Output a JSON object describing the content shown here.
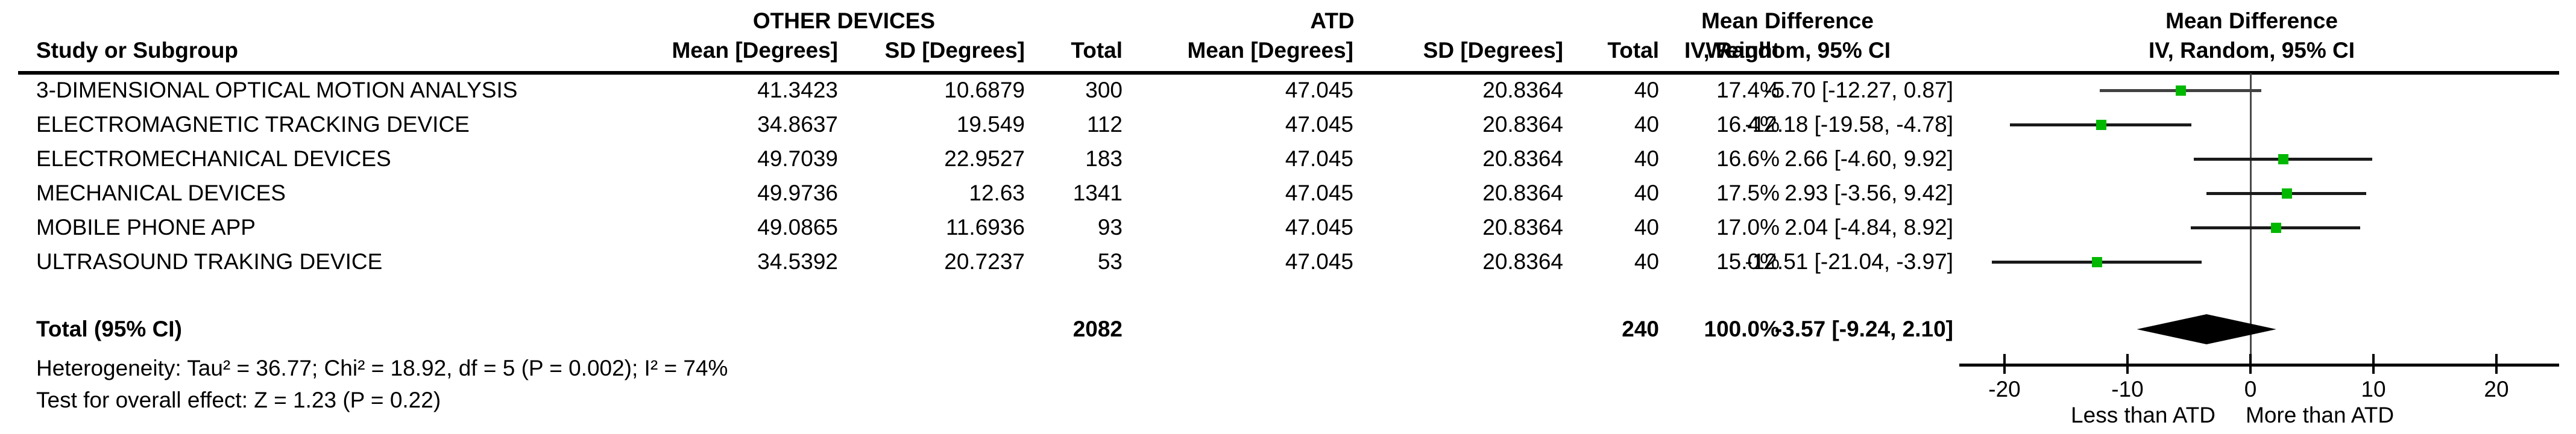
{
  "header": {
    "group_left": "OTHER DEVICES",
    "group_right": "ATD",
    "col_study": "Study or Subgroup",
    "col_mean": "Mean [Degrees]",
    "col_sd": "SD [Degrees]",
    "col_total": "Total",
    "col_weight": "Weight",
    "md_line1": "Mean Difference",
    "md_line2": "IV, Random, 95% CI"
  },
  "rows": [
    {
      "study": "3-DIMENSIONAL OPTICAL MOTION ANALYSIS",
      "mean1": "41.3423",
      "sd1": "10.6879",
      "total1": "300",
      "mean2": "47.045",
      "sd2": "20.8364",
      "total2": "40",
      "weight": "17.4%",
      "ci": "-5.70 [-12.27, 0.87]",
      "est": -5.7,
      "lo": -12.27,
      "hi": 0.87,
      "line_color": "#424242"
    },
    {
      "study": "ELECTROMAGNETIC TRACKING DEVICE",
      "mean1": "34.8637",
      "sd1": "19.549",
      "total1": "112",
      "mean2": "47.045",
      "sd2": "20.8364",
      "total2": "40",
      "weight": "16.4%",
      "ci": "-12.18 [-19.58, -4.78]",
      "est": -12.18,
      "lo": -19.58,
      "hi": -4.78,
      "line_color": "#1a1a1a"
    },
    {
      "study": "ELECTROMECHANICAL DEVICES",
      "mean1": "49.7039",
      "sd1": "22.9527",
      "total1": "183",
      "mean2": "47.045",
      "sd2": "20.8364",
      "total2": "40",
      "weight": "16.6%",
      "ci": "2.66 [-4.60, 9.92]",
      "est": 2.66,
      "lo": -4.6,
      "hi": 9.92,
      "line_color": "#1a1a1a"
    },
    {
      "study": "MECHANICAL DEVICES",
      "mean1": "49.9736",
      "sd1": "12.63",
      "total1": "1341",
      "mean2": "47.045",
      "sd2": "20.8364",
      "total2": "40",
      "weight": "17.5%",
      "ci": "2.93 [-3.56, 9.42]",
      "est": 2.93,
      "lo": -3.56,
      "hi": 9.42,
      "line_color": "#1a1a1a"
    },
    {
      "study": "MOBILE PHONE APP",
      "mean1": "49.0865",
      "sd1": "11.6936",
      "total1": "93",
      "mean2": "47.045",
      "sd2": "20.8364",
      "total2": "40",
      "weight": "17.0%",
      "ci": "2.04 [-4.84, 8.92]",
      "est": 2.04,
      "lo": -4.84,
      "hi": 8.92,
      "line_color": "#1a1a1a"
    },
    {
      "study": "ULTRASOUND TRAKING DEVICE",
      "mean1": "34.5392",
      "sd1": "20.7237",
      "total1": "53",
      "mean2": "47.045",
      "sd2": "20.8364",
      "total2": "40",
      "weight": "15.0%",
      "ci": "-12.51 [-21.04, -3.97]",
      "est": -12.51,
      "lo": -21.04,
      "hi": -3.97,
      "line_color": "#1a1a1a"
    }
  ],
  "total": {
    "label": "Total (95% CI)",
    "total1": "2082",
    "total2": "240",
    "weight": "100.0%",
    "ci": "-3.57 [-9.24, 2.10]",
    "est": -3.57,
    "lo": -9.24,
    "hi": 2.1
  },
  "footnotes": {
    "heterogeneity": "Heterogeneity: Tau² = 36.77; Chi² = 18.92, df = 5 (P = 0.002); I² = 74%",
    "overall": "Test for overall effect: Z = 1.23 (P = 0.22)"
  },
  "axis": {
    "ticks": [
      "-20",
      "-10",
      "0",
      "10",
      "20"
    ],
    "tick_values": [
      -20,
      -10,
      0,
      10,
      20
    ],
    "label_left": "Less than ATD",
    "label_right": "More than ATD"
  },
  "colors": {
    "marker_green": "#00B800",
    "diamond_black": "#000000",
    "zero_line_gray": "#4a4a4a"
  },
  "chart_data": {
    "type": "forest",
    "effect_measure": "Mean Difference, IV, Random, 95% CI",
    "group1_name": "OTHER DEVICES",
    "group2_name": "ATD",
    "studies": [
      "3-DIMENSIONAL OPTICAL MOTION ANALYSIS",
      "ELECTROMAGNETIC TRACKING DEVICE",
      "ELECTROMECHANICAL DEVICES",
      "MECHANICAL DEVICES",
      "MOBILE PHONE APP",
      "ULTRASOUND TRAKING DEVICE"
    ],
    "group1_means": [
      41.3423,
      34.8637,
      49.7039,
      49.9736,
      49.0865,
      34.5392
    ],
    "group1_sds": [
      10.6879,
      19.549,
      22.9527,
      12.63,
      11.6936,
      20.7237
    ],
    "group1_totals": [
      300,
      112,
      183,
      1341,
      93,
      53
    ],
    "group2_means": [
      47.045,
      47.045,
      47.045,
      47.045,
      47.045,
      47.045
    ],
    "group2_sds": [
      20.8364,
      20.8364,
      20.8364,
      20.8364,
      20.8364,
      20.8364
    ],
    "group2_totals": [
      40,
      40,
      40,
      40,
      40,
      40
    ],
    "weights_pct": [
      17.4,
      16.4,
      16.6,
      17.5,
      17.0,
      15.0
    ],
    "estimates": [
      -5.7,
      -12.18,
      2.66,
      2.93,
      2.04,
      -12.51
    ],
    "ci_low": [
      -12.27,
      -19.58,
      -4.6,
      -3.56,
      -4.84,
      -21.04
    ],
    "ci_high": [
      0.87,
      -4.78,
      9.92,
      9.42,
      8.92,
      -3.97
    ],
    "total": {
      "n1": 2082,
      "n2": 240,
      "weight_pct": 100.0,
      "estimate": -3.57,
      "ci_low": -9.24,
      "ci_high": 2.1
    },
    "heterogeneity": {
      "tau2": 36.77,
      "chi2": 18.92,
      "df": 5,
      "p": 0.002,
      "i2_pct": 74
    },
    "overall_effect": {
      "z": 1.23,
      "p": 0.22
    },
    "xlim": [
      -24,
      24
    ],
    "x_ticks": [
      -20,
      -10,
      0,
      10,
      20
    ],
    "x_label_left": "Less than ATD",
    "x_label_right": "More than ATD"
  }
}
